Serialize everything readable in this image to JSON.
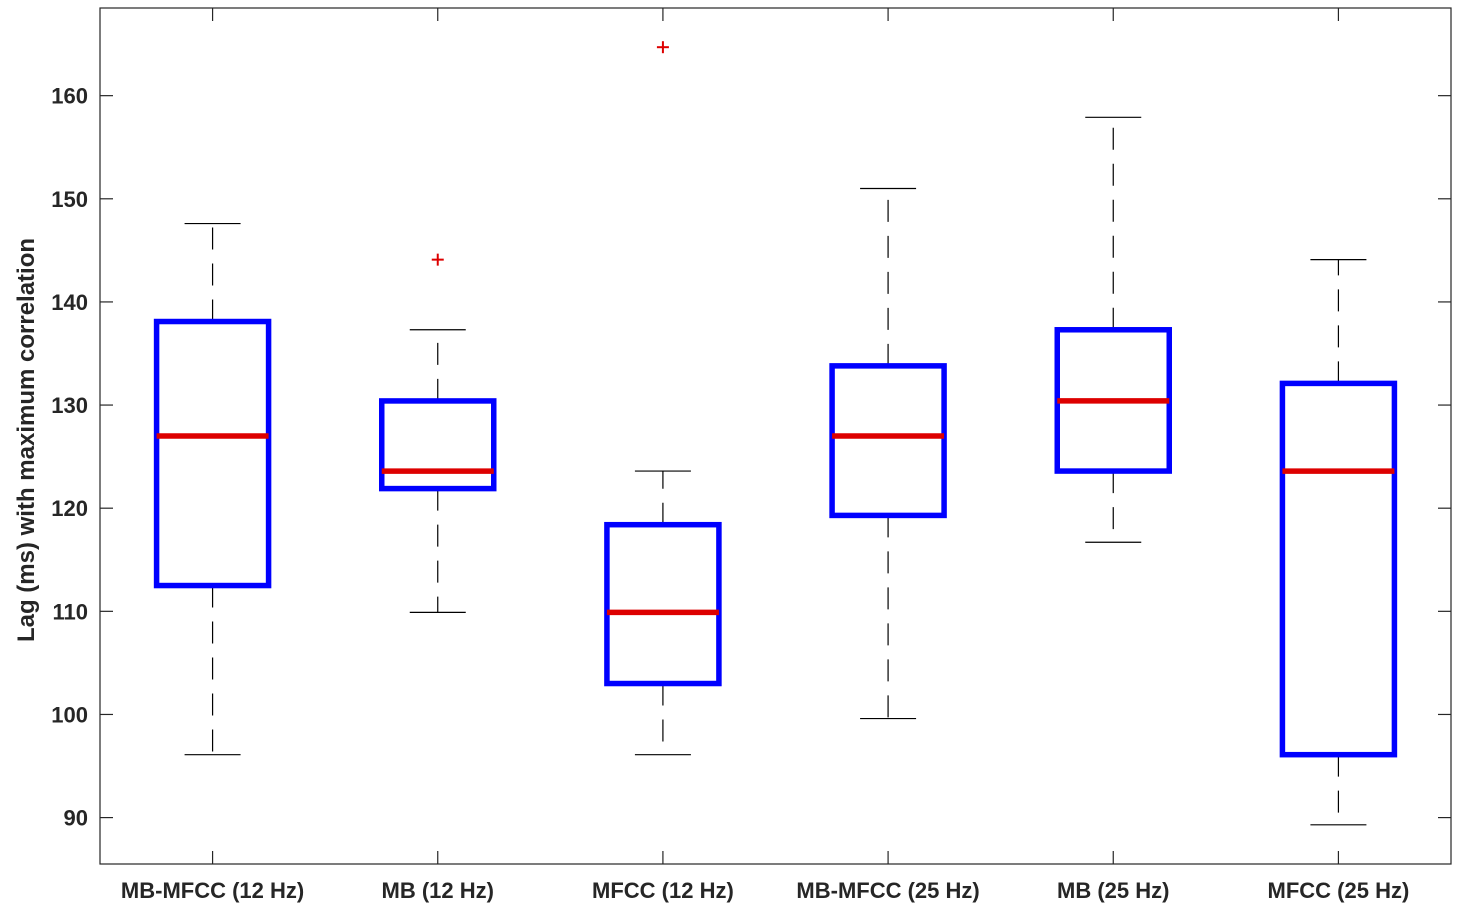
{
  "chart_data": {
    "type": "boxplot",
    "title": "",
    "xlabel": "",
    "ylabel": "Lag (ms) with maximum correlation",
    "ylim": [
      85.5,
      168.5
    ],
    "yticks": [
      90,
      100,
      110,
      120,
      130,
      140,
      150,
      160
    ],
    "grid": false,
    "categories": [
      "MB-MFCC (12 Hz)",
      "MB (12 Hz)",
      "MFCC (12 Hz)",
      "MB-MFCC (25 Hz)",
      "MB (25 Hz)",
      "MFCC (25 Hz)"
    ],
    "boxes": [
      {
        "whisker_low": 96.1,
        "q1": 112.5,
        "median": 127.0,
        "q3": 138.1,
        "whisker_high": 147.6,
        "outliers": []
      },
      {
        "whisker_low": 109.9,
        "q1": 121.9,
        "median": 123.6,
        "q3": 130.4,
        "whisker_high": 137.3,
        "outliers": [
          144.1
        ]
      },
      {
        "whisker_low": 96.1,
        "q1": 103.0,
        "median": 109.9,
        "q3": 118.4,
        "whisker_high": 123.6,
        "outliers": [
          164.7
        ]
      },
      {
        "whisker_low": 99.6,
        "q1": 119.3,
        "median": 127.0,
        "q3": 133.8,
        "whisker_high": 151.0,
        "outliers": []
      },
      {
        "whisker_low": 116.7,
        "q1": 123.6,
        "median": 130.4,
        "q3": 137.3,
        "whisker_high": 157.9,
        "outliers": []
      },
      {
        "whisker_low": 89.3,
        "q1": 96.1,
        "median": 123.6,
        "q3": 132.1,
        "whisker_high": 144.1,
        "outliers": []
      }
    ],
    "colors": {
      "box": "#0000ff",
      "median": "#dd0000",
      "outlier": "#dd0000",
      "whisker": "#000000",
      "axis": "#262626"
    }
  }
}
